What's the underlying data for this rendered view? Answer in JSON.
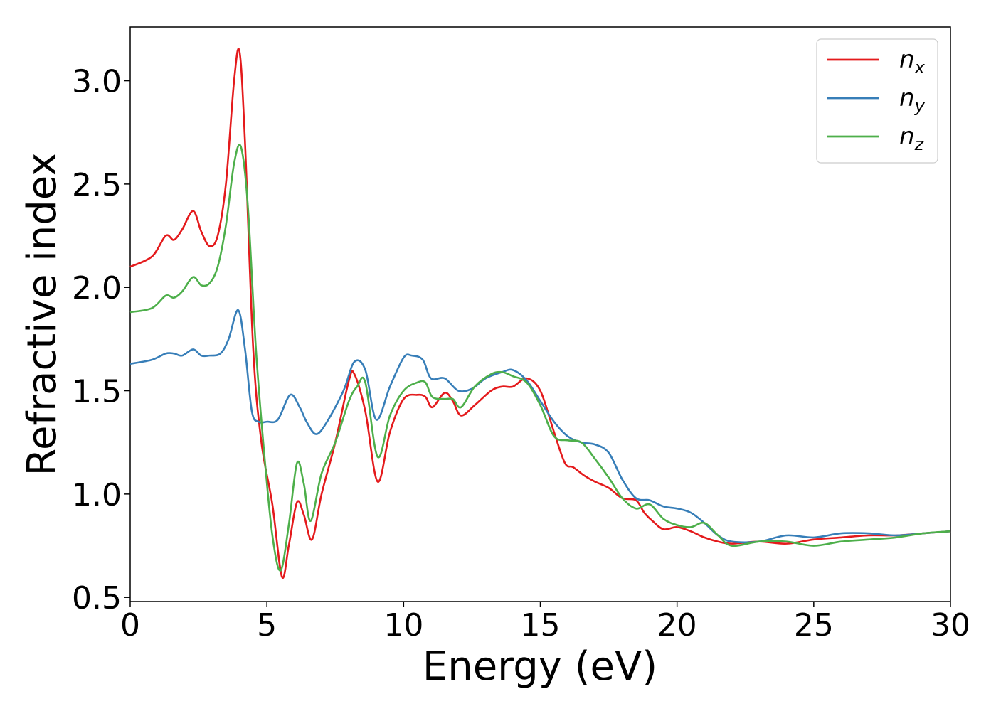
{
  "chart_data": {
    "type": "line",
    "xlabel": "Energy (eV)",
    "ylabel": "Refractive index",
    "xlim": [
      0,
      30
    ],
    "ylim": [
      0.48,
      3.26
    ],
    "xticks": [
      0,
      5,
      10,
      15,
      20,
      25,
      30
    ],
    "xtick_labels": [
      "0",
      "5",
      "10",
      "15",
      "20",
      "25",
      "30"
    ],
    "yticks": [
      0.5,
      1.0,
      1.5,
      2.0,
      2.5,
      3.0
    ],
    "ytick_labels": [
      "0.5",
      "1.0",
      "1.5",
      "2.0",
      "2.5",
      "3.0"
    ],
    "grid": false,
    "legend_position": "top-right",
    "series": [
      {
        "name": "n",
        "subscript": "x",
        "color": "#e41a1c",
        "x": [
          0,
          0.8,
          1.3,
          1.6,
          1.9,
          2.3,
          2.6,
          2.9,
          3.2,
          3.5,
          3.8,
          4.0,
          4.2,
          4.5,
          4.8,
          5.2,
          5.55,
          5.8,
          6.1,
          6.35,
          6.65,
          7.0,
          7.5,
          8.0,
          8.2,
          8.6,
          9.05,
          9.5,
          10.0,
          10.5,
          10.8,
          11.05,
          11.5,
          11.8,
          12.1,
          12.6,
          13.2,
          13.6,
          14.0,
          14.5,
          15.0,
          15.5,
          15.9,
          16.2,
          16.6,
          17.0,
          17.5,
          18.0,
          18.5,
          18.8,
          19.1,
          19.5,
          20.0,
          20.5,
          21.0,
          21.5,
          22.0,
          23.0,
          24.0,
          25.0,
          26.0,
          27.0,
          28.0,
          29.0,
          30.0
        ],
        "y": [
          2.1,
          2.15,
          2.25,
          2.23,
          2.28,
          2.37,
          2.27,
          2.2,
          2.25,
          2.5,
          3.0,
          3.14,
          2.7,
          1.7,
          1.25,
          0.95,
          0.6,
          0.75,
          0.96,
          0.9,
          0.78,
          1.0,
          1.25,
          1.55,
          1.58,
          1.4,
          1.06,
          1.3,
          1.46,
          1.48,
          1.47,
          1.42,
          1.49,
          1.45,
          1.38,
          1.43,
          1.5,
          1.52,
          1.52,
          1.56,
          1.5,
          1.3,
          1.15,
          1.13,
          1.09,
          1.06,
          1.03,
          0.98,
          0.97,
          0.91,
          0.87,
          0.83,
          0.84,
          0.82,
          0.79,
          0.77,
          0.76,
          0.77,
          0.76,
          0.78,
          0.79,
          0.8,
          0.8,
          0.81,
          0.82
        ]
      },
      {
        "name": "n",
        "subscript": "y",
        "color": "#377eb8",
        "x": [
          0,
          0.8,
          1.3,
          1.6,
          1.9,
          2.3,
          2.6,
          2.9,
          3.3,
          3.6,
          3.95,
          4.2,
          4.45,
          4.7,
          5.0,
          5.4,
          5.85,
          6.2,
          6.45,
          6.8,
          7.2,
          7.8,
          8.2,
          8.6,
          9.0,
          9.5,
          10.0,
          10.3,
          10.7,
          11.0,
          11.5,
          12.0,
          12.5,
          13.0,
          13.6,
          14.0,
          14.5,
          15.0,
          15.5,
          16.0,
          16.5,
          17.0,
          17.5,
          18.0,
          18.5,
          19.0,
          19.5,
          20.0,
          20.5,
          21.0,
          21.5,
          22.0,
          23.0,
          24.0,
          25.0,
          26.0,
          27.0,
          28.0,
          29.0,
          30.0
        ],
        "y": [
          1.63,
          1.65,
          1.68,
          1.68,
          1.67,
          1.7,
          1.67,
          1.67,
          1.68,
          1.75,
          1.89,
          1.7,
          1.4,
          1.35,
          1.35,
          1.36,
          1.48,
          1.42,
          1.35,
          1.29,
          1.35,
          1.5,
          1.64,
          1.6,
          1.36,
          1.52,
          1.66,
          1.67,
          1.65,
          1.56,
          1.56,
          1.5,
          1.51,
          1.56,
          1.59,
          1.6,
          1.55,
          1.45,
          1.35,
          1.28,
          1.25,
          1.24,
          1.2,
          1.07,
          0.98,
          0.97,
          0.94,
          0.93,
          0.91,
          0.86,
          0.8,
          0.77,
          0.77,
          0.8,
          0.79,
          0.81,
          0.81,
          0.8,
          0.81,
          0.82
        ]
      },
      {
        "name": "n",
        "subscript": "z",
        "color": "#4daf4a",
        "x": [
          0,
          0.8,
          1.3,
          1.6,
          1.9,
          2.3,
          2.6,
          2.9,
          3.2,
          3.5,
          3.8,
          4.05,
          4.3,
          4.6,
          4.9,
          5.2,
          5.5,
          5.8,
          6.1,
          6.35,
          6.6,
          7.0,
          7.5,
          8.0,
          8.3,
          8.6,
          9.05,
          9.5,
          10.0,
          10.5,
          10.8,
          11.05,
          11.5,
          11.8,
          12.1,
          12.6,
          13.2,
          13.6,
          14.0,
          14.5,
          15.0,
          15.5,
          16.0,
          16.5,
          17.0,
          17.5,
          18.0,
          18.5,
          19.0,
          19.5,
          20.0,
          20.5,
          21.0,
          21.5,
          22.0,
          23.0,
          24.0,
          25.0,
          26.0,
          27.0,
          28.0,
          29.0,
          30.0
        ],
        "y": [
          1.88,
          1.9,
          1.96,
          1.95,
          1.98,
          2.05,
          2.01,
          2.02,
          2.1,
          2.3,
          2.6,
          2.68,
          2.4,
          1.7,
          1.2,
          0.8,
          0.63,
          0.85,
          1.15,
          1.05,
          0.87,
          1.1,
          1.25,
          1.45,
          1.52,
          1.54,
          1.18,
          1.38,
          1.5,
          1.54,
          1.54,
          1.47,
          1.46,
          1.46,
          1.42,
          1.52,
          1.58,
          1.59,
          1.57,
          1.54,
          1.43,
          1.28,
          1.26,
          1.25,
          1.17,
          1.08,
          0.98,
          0.93,
          0.95,
          0.88,
          0.85,
          0.84,
          0.86,
          0.8,
          0.75,
          0.77,
          0.77,
          0.75,
          0.77,
          0.78,
          0.79,
          0.81,
          0.82
        ]
      }
    ]
  }
}
